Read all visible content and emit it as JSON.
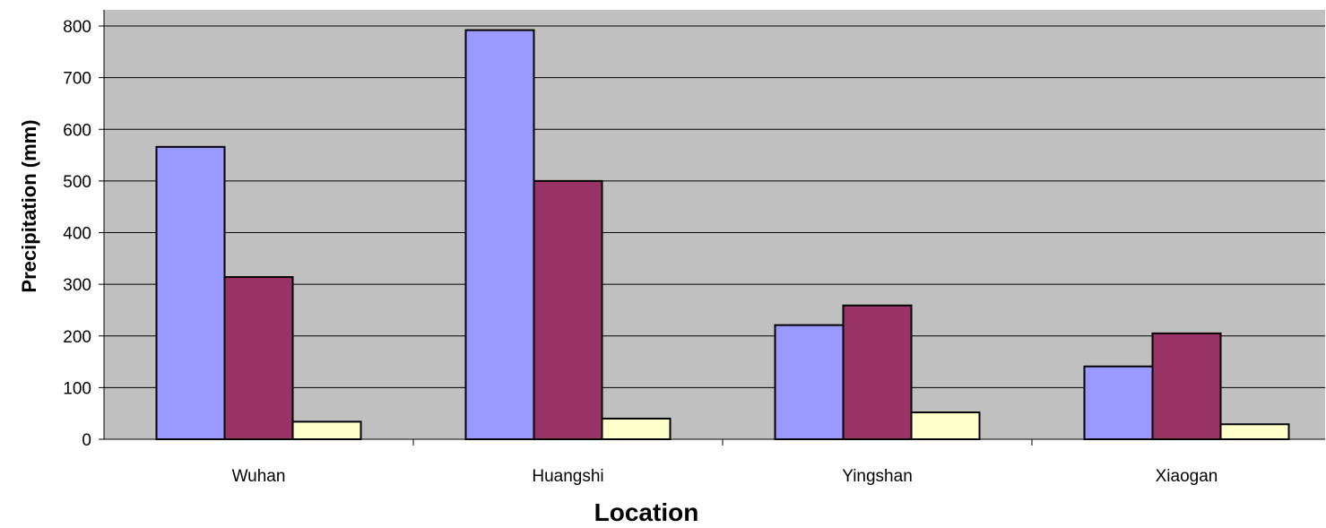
{
  "chart_data": {
    "type": "bar",
    "title": "",
    "xlabel": "Location",
    "ylabel": "Precipitation (mm)",
    "categories": [
      "Wuhan",
      "Huangshi",
      "Yingshan",
      "Xiaogan"
    ],
    "series": [
      {
        "values": [
          566,
          792,
          221,
          141
        ],
        "color": "#9999ff"
      },
      {
        "values": [
          314,
          500,
          259,
          205
        ],
        "color": "#993366"
      },
      {
        "values": [
          34,
          40,
          52,
          29
        ],
        "color": "#ffffcc"
      }
    ],
    "ylim": [
      0,
      800
    ],
    "yticks": [
      0,
      100,
      200,
      300,
      400,
      500,
      600,
      700,
      800
    ],
    "grid": true,
    "legend": "none",
    "plot_background": "#c0c0c0"
  }
}
